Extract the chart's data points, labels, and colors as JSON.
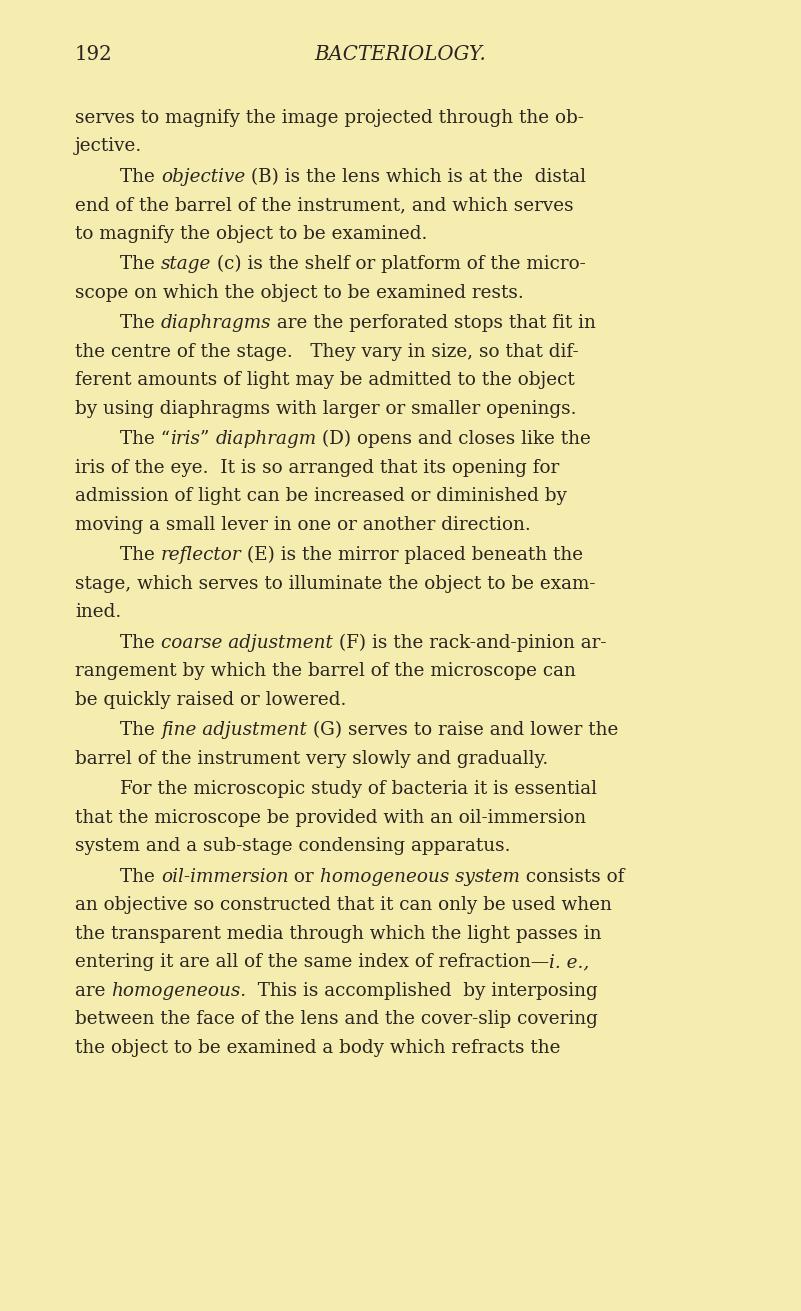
{
  "bg_color": "#f5edb0",
  "page_number": "192",
  "header": "BACTERIOLOGY.",
  "text_color": "#2a2520",
  "paragraphs": [
    {
      "first_line_indent": false,
      "lines": [
        [
          {
            "text": "serves to magnify the image projected through the ob-",
            "style": "normal"
          }
        ],
        [
          {
            "text": "jective.",
            "style": "normal"
          }
        ]
      ]
    },
    {
      "first_line_indent": true,
      "lines": [
        [
          {
            "text": "The ",
            "style": "normal"
          },
          {
            "text": "objective",
            "style": "italic"
          },
          {
            "text": " (B) is the lens which is at the  distal",
            "style": "normal"
          }
        ],
        [
          {
            "text": "end of the barrel of the instrument, and which serves",
            "style": "normal"
          }
        ],
        [
          {
            "text": "to magnify the object to be examined.",
            "style": "normal"
          }
        ]
      ]
    },
    {
      "first_line_indent": true,
      "lines": [
        [
          {
            "text": "The ",
            "style": "normal"
          },
          {
            "text": "stage",
            "style": "italic"
          },
          {
            "text": " (c) is the shelf or platform of the micro-",
            "style": "normal"
          }
        ],
        [
          {
            "text": "scope on which the object to be examined rests.",
            "style": "normal"
          }
        ]
      ]
    },
    {
      "first_line_indent": true,
      "lines": [
        [
          {
            "text": "The ",
            "style": "normal"
          },
          {
            "text": "diaphragms",
            "style": "italic"
          },
          {
            "text": " are the perforated stops that fit in",
            "style": "normal"
          }
        ],
        [
          {
            "text": "the centre of the stage.   They vary in size, so that dif-",
            "style": "normal"
          }
        ],
        [
          {
            "text": "ferent amounts of light may be admitted to the object",
            "style": "normal"
          }
        ],
        [
          {
            "text": "by using diaphragms with larger or smaller openings.",
            "style": "normal"
          }
        ]
      ]
    },
    {
      "first_line_indent": true,
      "lines": [
        [
          {
            "text": "The “",
            "style": "normal"
          },
          {
            "text": "iris",
            "style": "italic"
          },
          {
            "text": "” ",
            "style": "normal"
          },
          {
            "text": "diaphragm",
            "style": "italic"
          },
          {
            "text": " (D) opens and closes like the",
            "style": "normal"
          }
        ],
        [
          {
            "text": "iris of the eye.  It is so arranged that its opening for",
            "style": "normal"
          }
        ],
        [
          {
            "text": "admission of light can be increased or diminished by",
            "style": "normal"
          }
        ],
        [
          {
            "text": "moving a small lever in one or another direction.",
            "style": "normal"
          }
        ]
      ]
    },
    {
      "first_line_indent": true,
      "lines": [
        [
          {
            "text": "The ",
            "style": "normal"
          },
          {
            "text": "reflector",
            "style": "italic"
          },
          {
            "text": " (E) is the mirror placed beneath the",
            "style": "normal"
          }
        ],
        [
          {
            "text": "stage, which serves to illuminate the object to be exam-",
            "style": "normal"
          }
        ],
        [
          {
            "text": "ined.",
            "style": "normal"
          }
        ]
      ]
    },
    {
      "first_line_indent": true,
      "lines": [
        [
          {
            "text": "The ",
            "style": "normal"
          },
          {
            "text": "coarse adjustment",
            "style": "italic"
          },
          {
            "text": " (F) is the rack-and-pinion ar-",
            "style": "normal"
          }
        ],
        [
          {
            "text": "rangement by which the barrel of the microscope can",
            "style": "normal"
          }
        ],
        [
          {
            "text": "be quickly raised or lowered.",
            "style": "normal"
          }
        ]
      ]
    },
    {
      "first_line_indent": true,
      "lines": [
        [
          {
            "text": "The ",
            "style": "normal"
          },
          {
            "text": "fine adjustment",
            "style": "italic"
          },
          {
            "text": " (G) serves to raise and lower the",
            "style": "normal"
          }
        ],
        [
          {
            "text": "barrel of the instrument very slowly and gradually.",
            "style": "normal"
          }
        ]
      ]
    },
    {
      "first_line_indent": true,
      "lines": [
        [
          {
            "text": "For the microscopic study of bacteria it is essential",
            "style": "normal"
          }
        ],
        [
          {
            "text": "that the microscope be provided with an oil-immersion",
            "style": "normal"
          }
        ],
        [
          {
            "text": "system and a sub-stage condensing apparatus.",
            "style": "normal"
          }
        ]
      ]
    },
    {
      "first_line_indent": true,
      "lines": [
        [
          {
            "text": "The ",
            "style": "normal"
          },
          {
            "text": "oil-immersion",
            "style": "italic"
          },
          {
            "text": " or ",
            "style": "normal"
          },
          {
            "text": "homogeneous system",
            "style": "italic"
          },
          {
            "text": " consists of",
            "style": "normal"
          }
        ],
        [
          {
            "text": "an objective so constructed that it can only be used when",
            "style": "normal"
          }
        ],
        [
          {
            "text": "the transparent media through which the light passes in",
            "style": "normal"
          }
        ],
        [
          {
            "text": "entering it are all of the same index of refraction—",
            "style": "normal"
          },
          {
            "text": "i. e.,",
            "style": "italic"
          }
        ],
        [
          {
            "text": "are ",
            "style": "normal"
          },
          {
            "text": "homogeneous.",
            "style": "italic"
          },
          {
            "text": "  This is accomplished  by interposing",
            "style": "normal"
          }
        ],
        [
          {
            "text": "between the face of the lens and the cover-slip covering",
            "style": "normal"
          }
        ],
        [
          {
            "text": "the object to be examined a body which refracts the",
            "style": "normal"
          }
        ]
      ]
    }
  ]
}
